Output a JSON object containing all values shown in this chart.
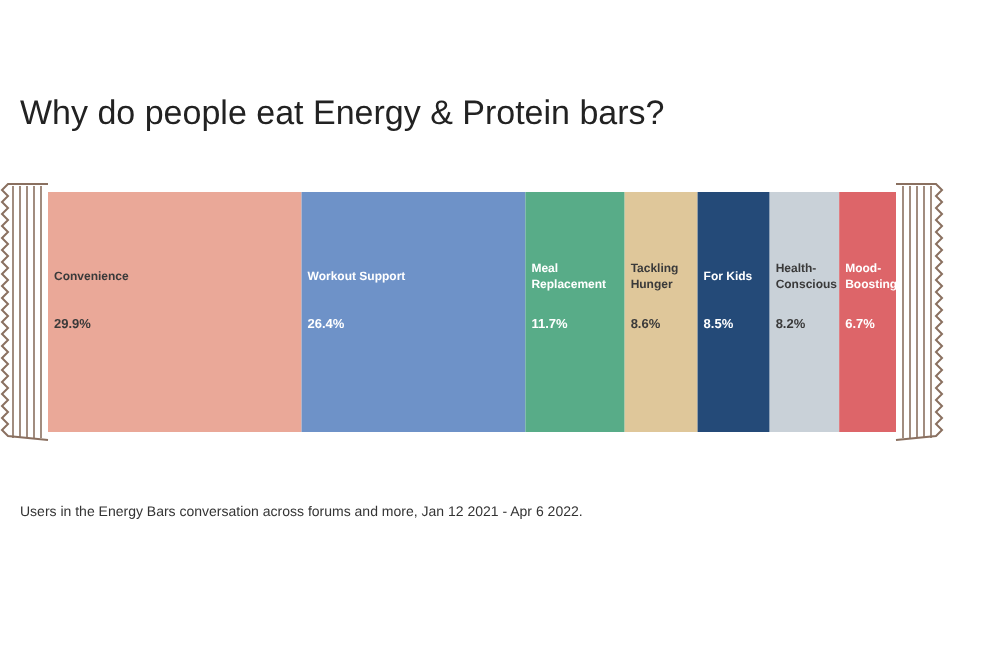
{
  "chart_data": {
    "type": "bar",
    "orientation": "horizontal",
    "stacked": true,
    "title": "Why do people eat Energy & Protein bars?",
    "categories": [
      null
    ],
    "xlim": [
      0,
      100
    ],
    "series": [
      {
        "name": "Convenience",
        "color": "#eaa898",
        "values": [
          29.9
        ],
        "value_labels": [
          "29.9%"
        ]
      },
      {
        "name": "Workout Support",
        "color": "#6e92c8",
        "values": [
          26.4
        ],
        "value_labels": [
          "26.4%"
        ]
      },
      {
        "name": "Meal Replacement",
        "color": "#58ac88",
        "values": [
          11.7
        ],
        "value_labels": [
          "11.7%"
        ]
      },
      {
        "name": "Tackling Hunger",
        "color": "#dfc79a",
        "values": [
          8.6
        ],
        "value_labels": [
          "8.6%"
        ]
      },
      {
        "name": "For Kids",
        "color": "#244a78",
        "values": [
          8.5
        ],
        "value_labels": [
          "8.5%"
        ]
      },
      {
        "name": "Health-Conscious",
        "color": "#c9d1d8",
        "values": [
          8.2
        ],
        "value_labels": [
          "8.2%"
        ]
      },
      {
        "name": "Mood-Boosting",
        "color": "#dd6569",
        "values": [
          6.7
        ],
        "value_labels": [
          "6.7%"
        ]
      }
    ],
    "annotations": [
      "Users in the Energy Bars conversation across forums and more, Jan 12 2021 - Apr 6 2022."
    ]
  }
}
